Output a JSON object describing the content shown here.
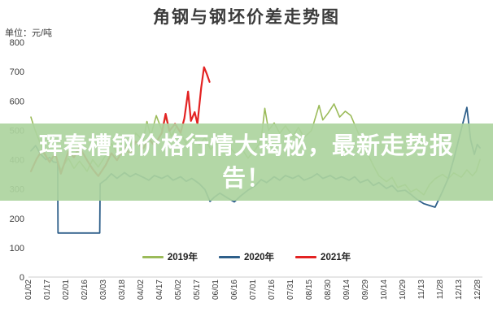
{
  "title": "角钢与钢坯价差走势图",
  "unit_label": "单位：元/吨",
  "overlay": {
    "full_text": "珲春槽钢价格行情大揭秘，最新走势报告！",
    "lines": [
      "珲春槽钢价格行情大揭秘，最新走势报",
      "告！"
    ]
  },
  "legend": [
    {
      "label": "2019年",
      "color": "#9bbb59"
    },
    {
      "label": "2020年",
      "color": "#2e5f8a"
    },
    {
      "label": "2021年",
      "color": "#e32222"
    }
  ],
  "chart_data": {
    "type": "line",
    "title": "角钢与钢坯价差走势图",
    "ylabel": "元/吨",
    "xlabel": "",
    "ylim": [
      0,
      800
    ],
    "yticks": [
      0,
      100,
      200,
      300,
      400,
      500,
      600,
      700,
      800
    ],
    "grid": false,
    "legend_position": "bottom",
    "x_labels": [
      "01/02",
      "01/17",
      "02/01",
      "02/16",
      "03/03",
      "03/18",
      "04/02",
      "04/17",
      "05/02",
      "05/17",
      "06/01",
      "06/16",
      "07/01",
      "07/16",
      "07/31",
      "08/15",
      "08/30",
      "09/14",
      "09/29",
      "10/14",
      "10/29",
      "11/13",
      "11/28",
      "12/13",
      "12/28"
    ],
    "series": [
      {
        "name": "2019年",
        "color": "#9bbb59",
        "width": 1.6,
        "points": [
          [
            0,
            545
          ],
          [
            0.2,
            505
          ],
          [
            0.5,
            455
          ],
          [
            0.8,
            415
          ],
          [
            1,
            390
          ],
          [
            1.3,
            420
          ],
          [
            1.6,
            365
          ],
          [
            2,
            405
          ],
          [
            2.3,
            370
          ],
          [
            2.6,
            395
          ],
          [
            3,
            360
          ],
          [
            3.3,
            400
          ],
          [
            3.6,
            375
          ],
          [
            4,
            415
          ],
          [
            4.3,
            455
          ],
          [
            4.6,
            425
          ],
          [
            5,
            470
          ],
          [
            5.3,
            445
          ],
          [
            5.6,
            490
          ],
          [
            6,
            465
          ],
          [
            6.2,
            530
          ],
          [
            6.4,
            480
          ],
          [
            6.7,
            550
          ],
          [
            7,
            500
          ],
          [
            7.2,
            545
          ],
          [
            7.5,
            480
          ],
          [
            7.8,
            515
          ],
          [
            8,
            490
          ],
          [
            8.3,
            455
          ],
          [
            8.6,
            485
          ],
          [
            9,
            450
          ],
          [
            9.3,
            475
          ],
          [
            9.6,
            435
          ],
          [
            10,
            460
          ],
          [
            10.3,
            425
          ],
          [
            10.6,
            445
          ],
          [
            11,
            415
          ],
          [
            11.3,
            435
          ],
          [
            11.6,
            405
          ],
          [
            12,
            435
          ],
          [
            12.3,
            465
          ],
          [
            12.5,
            575
          ],
          [
            12.7,
            500
          ],
          [
            13,
            525
          ],
          [
            13.3,
            490
          ],
          [
            13.6,
            515
          ],
          [
            14,
            480
          ],
          [
            14.3,
            510
          ],
          [
            14.6,
            475
          ],
          [
            15,
            500
          ],
          [
            15.4,
            585
          ],
          [
            15.6,
            535
          ],
          [
            15.9,
            560
          ],
          [
            16.2,
            590
          ],
          [
            16.5,
            545
          ],
          [
            16.8,
            565
          ],
          [
            17.1,
            550
          ],
          [
            17.4,
            505
          ],
          [
            17.7,
            460
          ],
          [
            18,
            420
          ],
          [
            18.3,
            380
          ],
          [
            18.6,
            345
          ],
          [
            19,
            325
          ],
          [
            19.3,
            340
          ],
          [
            19.6,
            305
          ],
          [
            20,
            315
          ],
          [
            20.3,
            290
          ],
          [
            20.6,
            300
          ],
          [
            21,
            280
          ],
          [
            21.3,
            315
          ],
          [
            21.6,
            335
          ],
          [
            22,
            350
          ],
          [
            22.3,
            335
          ],
          [
            22.6,
            355
          ],
          [
            23,
            340
          ],
          [
            23.3,
            365
          ],
          [
            23.6,
            345
          ],
          [
            23.8,
            360
          ],
          [
            24,
            400
          ]
        ]
      },
      {
        "name": "2020年",
        "color": "#2e5f8a",
        "width": 1.8,
        "points": [
          [
            0,
            430
          ],
          [
            0.25,
            448
          ],
          [
            0.5,
            420
          ],
          [
            0.8,
            400
          ],
          [
            1,
            408
          ],
          [
            1.2,
            392
          ],
          [
            1.43,
            390
          ],
          [
            1.45,
            150
          ],
          [
            3.68,
            150
          ],
          [
            3.7,
            318
          ],
          [
            4,
            332
          ],
          [
            4.3,
            352
          ],
          [
            4.6,
            336
          ],
          [
            5,
            356
          ],
          [
            5.3,
            342
          ],
          [
            5.6,
            352
          ],
          [
            6,
            340
          ],
          [
            6.3,
            330
          ],
          [
            6.6,
            346
          ],
          [
            7,
            336
          ],
          [
            7.3,
            346
          ],
          [
            7.6,
            330
          ],
          [
            8,
            342
          ],
          [
            8.3,
            326
          ],
          [
            8.6,
            336
          ],
          [
            9,
            318
          ],
          [
            9.3,
            298
          ],
          [
            9.57,
            258
          ],
          [
            9.8,
            272
          ],
          [
            10.1,
            286
          ],
          [
            10.5,
            270
          ],
          [
            10.87,
            256
          ],
          [
            11.2,
            276
          ],
          [
            11.6,
            296
          ],
          [
            12,
            312
          ],
          [
            12.3,
            332
          ],
          [
            12.6,
            322
          ],
          [
            13,
            342
          ],
          [
            13.3,
            330
          ],
          [
            13.6,
            346
          ],
          [
            14,
            336
          ],
          [
            14.3,
            346
          ],
          [
            14.6,
            330
          ],
          [
            15,
            340
          ],
          [
            15.3,
            352
          ],
          [
            15.6,
            336
          ],
          [
            16,
            346
          ],
          [
            16.3,
            334
          ],
          [
            16.6,
            342
          ],
          [
            17,
            330
          ],
          [
            17.3,
            342
          ],
          [
            17.6,
            322
          ],
          [
            18,
            332
          ],
          [
            18.3,
            312
          ],
          [
            18.6,
            322
          ],
          [
            19,
            302
          ],
          [
            19.3,
            312
          ],
          [
            19.6,
            292
          ],
          [
            20,
            296
          ],
          [
            20.3,
            282
          ],
          [
            20.6,
            266
          ],
          [
            21,
            250
          ],
          [
            21.3,
            244
          ],
          [
            21.6,
            238
          ],
          [
            22,
            292
          ],
          [
            22.3,
            336
          ],
          [
            22.6,
            402
          ],
          [
            22.9,
            478
          ],
          [
            23.3,
            578
          ],
          [
            23.5,
            468
          ],
          [
            23.7,
            418
          ],
          [
            23.85,
            452
          ],
          [
            24,
            440
          ]
        ]
      },
      {
        "name": "2021年",
        "color": "#e32222",
        "width": 2.2,
        "points": [
          [
            0,
            360
          ],
          [
            0.3,
            402
          ],
          [
            0.6,
            432
          ],
          [
            1,
            392
          ],
          [
            1.3,
            422
          ],
          [
            1.6,
            352
          ],
          [
            2,
            428
          ],
          [
            2.3,
            408
          ],
          [
            2.6,
            442
          ],
          [
            3,
            398
          ],
          [
            3.3,
            368
          ],
          [
            3.6,
            344
          ],
          [
            4,
            382
          ],
          [
            4.3,
            422
          ],
          [
            4.6,
            398
          ],
          [
            5,
            442
          ],
          [
            5.3,
            418
          ],
          [
            5.6,
            462
          ],
          [
            6,
            438
          ],
          [
            6.3,
            472
          ],
          [
            6.6,
            448
          ],
          [
            7,
            492
          ],
          [
            7.2,
            556
          ],
          [
            7.4,
            498
          ],
          [
            7.7,
            522
          ],
          [
            8,
            492
          ],
          [
            8.2,
            540
          ],
          [
            8.4,
            632
          ],
          [
            8.55,
            532
          ],
          [
            8.75,
            562
          ],
          [
            8.9,
            522
          ],
          [
            9.1,
            645
          ],
          [
            9.25,
            715
          ],
          [
            9.4,
            692
          ],
          [
            9.55,
            665
          ]
        ]
      }
    ]
  }
}
